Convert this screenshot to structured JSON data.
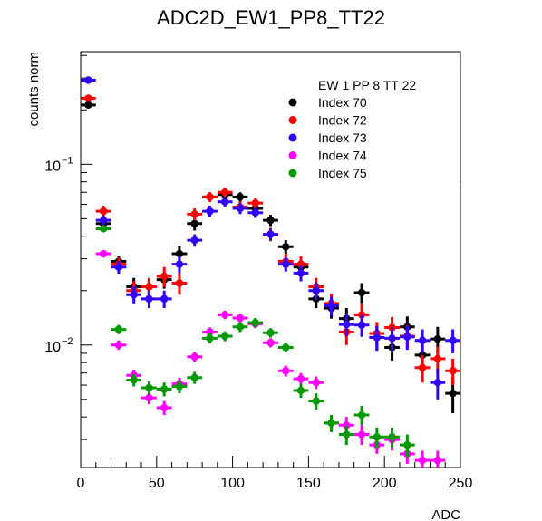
{
  "chart_data": {
    "type": "scatter",
    "title": "ADC2D_EW1_PP8_TT22",
    "xlabel": "ADC",
    "ylabel": "counts norm",
    "xlim": [
      0,
      250
    ],
    "ylim": [
      0.0021,
      0.42
    ],
    "yscale": "log",
    "x_ticks": [
      0,
      50,
      100,
      150,
      200,
      250
    ],
    "y_tick_labels": [
      {
        "value": 0.1,
        "base": "10",
        "exp": "−1"
      },
      {
        "value": 0.01,
        "base": "10",
        "exp": "−2"
      }
    ],
    "grid": false,
    "legend": {
      "header": "EW 1 PP 8 TT 22",
      "position": "top-right"
    },
    "x": [
      5,
      15,
      25,
      35,
      45,
      55,
      65,
      75,
      85,
      95,
      105,
      115,
      125,
      135,
      145,
      155,
      165,
      175,
      185,
      195,
      205,
      215,
      225,
      235,
      245
    ],
    "series": [
      {
        "name": "Index 70",
        "color": "#000000",
        "values": [
          0.213,
          0.047,
          0.029,
          0.021,
          0.021,
          0.023,
          0.032,
          0.047,
          0.066,
          0.068,
          0.066,
          0.057,
          0.049,
          0.035,
          0.027,
          0.018,
          0.016,
          0.014,
          0.0195,
          0.011,
          0.0097,
          0.0126,
          0.0088,
          0.0108,
          0.0054
        ],
        "errors": [
          0.008,
          0.003,
          0.002,
          0.0025,
          0.002,
          0.0025,
          0.0035,
          0.004,
          0.004,
          0.004,
          0.004,
          0.0035,
          0.0035,
          0.003,
          0.0025,
          0.002,
          0.002,
          0.002,
          0.0025,
          0.0017,
          0.0015,
          0.0018,
          0.0016,
          0.0018,
          0.0012
        ]
      },
      {
        "name": "Index 72",
        "color": "#ff0000",
        "values": [
          0.232,
          0.055,
          0.028,
          0.02,
          0.021,
          0.024,
          0.022,
          0.053,
          0.066,
          0.07,
          0.058,
          0.061,
          0.041,
          0.029,
          0.028,
          0.021,
          0.017,
          0.0118,
          0.0147,
          0.0116,
          0.0125,
          0.0112,
          0.0075,
          0.0084,
          0.0072
        ],
        "errors": [
          0.008,
          0.004,
          0.0025,
          0.0025,
          0.0025,
          0.003,
          0.003,
          0.004,
          0.004,
          0.004,
          0.004,
          0.004,
          0.0035,
          0.003,
          0.003,
          0.0025,
          0.0022,
          0.0018,
          0.0022,
          0.0018,
          0.0018,
          0.0017,
          0.0013,
          0.0014,
          0.0012
        ]
      },
      {
        "name": "Index 73",
        "color": "#3300ff",
        "values": [
          0.292,
          0.049,
          0.027,
          0.019,
          0.018,
          0.018,
          0.028,
          0.038,
          0.055,
          0.062,
          0.057,
          0.054,
          0.041,
          0.028,
          0.025,
          0.02,
          0.0165,
          0.013,
          0.0129,
          0.011,
          0.0109,
          0.0111,
          0.0106,
          0.0062,
          0.0106
        ],
        "errors": [
          0.009,
          0.003,
          0.0022,
          0.002,
          0.002,
          0.002,
          0.003,
          0.003,
          0.004,
          0.004,
          0.004,
          0.0035,
          0.003,
          0.0025,
          0.0025,
          0.0022,
          0.002,
          0.0018,
          0.0018,
          0.0017,
          0.0017,
          0.0017,
          0.0016,
          0.0012,
          0.0016
        ]
      },
      {
        "name": "Index 74",
        "color": "#ff00ff",
        "values": [
          null,
          0.032,
          0.01,
          0.0068,
          0.0051,
          0.0045,
          0.0061,
          0.0086,
          0.0118,
          0.0147,
          0.0141,
          0.0131,
          0.0103,
          0.0072,
          0.0065,
          0.0062,
          0.0037,
          0.0036,
          0.0032,
          0.0028,
          0.003,
          0.0025,
          0.0023,
          0.0023,
          null
        ],
        "errors": [
          null,
          0.0015,
          0.0006,
          0.0005,
          0.0004,
          0.0004,
          0.0005,
          0.0006,
          0.0007,
          0.0008,
          0.0008,
          0.0007,
          0.0006,
          0.0005,
          0.0005,
          0.0005,
          0.0004,
          0.0004,
          0.0004,
          0.0003,
          0.0004,
          0.0003,
          0.0003,
          0.0003,
          null
        ]
      },
      {
        "name": "Index 75",
        "color": "#009900",
        "values": [
          null,
          0.044,
          0.0122,
          0.0064,
          0.0058,
          0.0057,
          0.0059,
          0.0066,
          0.0109,
          0.0112,
          0.0126,
          0.0133,
          0.0117,
          0.0097,
          0.0056,
          0.0049,
          0.0037,
          0.0032,
          0.0041,
          0.0031,
          0.0031,
          0.0028,
          null,
          null,
          null
        ],
        "errors": [
          null,
          0.0018,
          0.0007,
          0.0005,
          0.0005,
          0.0005,
          0.0005,
          0.0005,
          0.0007,
          0.0007,
          0.0008,
          0.0008,
          0.0007,
          0.0006,
          0.0005,
          0.0005,
          0.0004,
          0.0004,
          0.0005,
          0.0004,
          0.0004,
          0.0004,
          null,
          null,
          null
        ]
      }
    ]
  }
}
